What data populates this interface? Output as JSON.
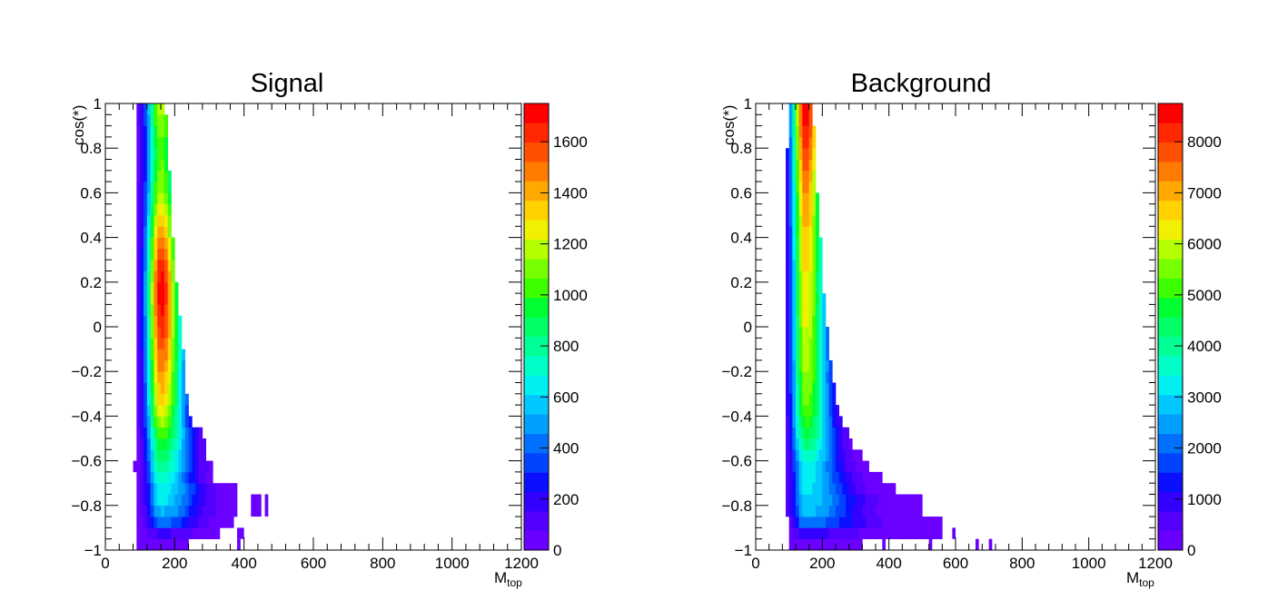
{
  "palette": [
    "#6a00ff",
    "#5400ff",
    "#3300ff",
    "#0a10ff",
    "#0044ff",
    "#0070ff",
    "#00a0ff",
    "#00c8ff",
    "#00f0f0",
    "#00ffc8",
    "#00ff96",
    "#00ff64",
    "#00ff32",
    "#3cff00",
    "#78ff00",
    "#b4ff00",
    "#f0f000",
    "#ffd200",
    "#ffa800",
    "#ff7c00",
    "#ff5000",
    "#ff2800",
    "#ff0000"
  ],
  "chart_data": [
    {
      "type": "heatmap",
      "title": "Signal",
      "xlabel_main": "M",
      "xlabel_sub": "top",
      "ylabel": "cos(*)",
      "xlim": [
        0,
        1200
      ],
      "ylim": [
        -1,
        1
      ],
      "x_ticks": [
        "0",
        "200",
        "400",
        "600",
        "800",
        "1000",
        "1200"
      ],
      "x_tick_values": [
        0,
        200,
        400,
        600,
        800,
        1000,
        1200
      ],
      "y_ticks": [
        "−1",
        "−0.8",
        "−0.6",
        "−0.4",
        "−0.2",
        "0",
        "0.2",
        "0.4",
        "0.6",
        "0.8",
        "1"
      ],
      "y_tick_values": [
        -1,
        -0.8,
        -0.6,
        -0.4,
        -0.2,
        0,
        0.2,
        0.4,
        0.6,
        0.8,
        1
      ],
      "z_max": 1750,
      "z_ticks": [
        "0",
        "200",
        "400",
        "600",
        "800",
        "1000",
        "1200",
        "1400",
        "1600"
      ],
      "z_tick_values": [
        0,
        200,
        400,
        600,
        800,
        1000,
        1200,
        1400,
        1600
      ],
      "bands": [
        {
          "y": [
            -1.0,
            -0.95
          ],
          "x_min": 90,
          "x_max": 240,
          "peak_x": 160,
          "peak": 40
        },
        {
          "y": [
            -0.95,
            -0.9
          ],
          "x_min": 90,
          "x_max": 330,
          "peak_x": 160,
          "peak": 170
        },
        {
          "y": [
            -0.9,
            -0.85
          ],
          "x_min": 90,
          "x_max": 370,
          "peak_x": 160,
          "peak": 420
        },
        {
          "y": [
            -0.85,
            -0.8
          ],
          "x_min": 90,
          "x_max": 380,
          "peak_x": 160,
          "peak": 540
        },
        {
          "y": [
            -0.8,
            -0.75
          ],
          "x_min": 90,
          "x_max": 380,
          "peak_x": 160,
          "peak": 620
        },
        {
          "y": [
            -0.75,
            -0.7
          ],
          "x_min": 90,
          "x_max": 380,
          "peak_x": 160,
          "peak": 660
        },
        {
          "y": [
            -0.7,
            -0.65
          ],
          "x_min": 90,
          "x_max": 310,
          "peak_x": 160,
          "peak": 720
        },
        {
          "y": [
            -0.65,
            -0.6
          ],
          "x_min": 80,
          "x_max": 310,
          "peak_x": 160,
          "peak": 800
        },
        {
          "y": [
            -0.6,
            -0.55
          ],
          "x_min": 90,
          "x_max": 290,
          "peak_x": 160,
          "peak": 880
        },
        {
          "y": [
            -0.55,
            -0.5
          ],
          "x_min": 90,
          "x_max": 290,
          "peak_x": 160,
          "peak": 960
        },
        {
          "y": [
            -0.5,
            -0.45
          ],
          "x_min": 90,
          "x_max": 280,
          "peak_x": 160,
          "peak": 1050
        },
        {
          "y": [
            -0.45,
            -0.4
          ],
          "x_min": 90,
          "x_max": 250,
          "peak_x": 160,
          "peak": 1150
        },
        {
          "y": [
            -0.4,
            -0.35
          ],
          "x_min": 90,
          "x_max": 240,
          "peak_x": 160,
          "peak": 1250
        },
        {
          "y": [
            -0.35,
            -0.3
          ],
          "x_min": 90,
          "x_max": 240,
          "peak_x": 160,
          "peak": 1330
        },
        {
          "y": [
            -0.3,
            -0.25
          ],
          "x_min": 90,
          "x_max": 230,
          "peak_x": 160,
          "peak": 1380
        },
        {
          "y": [
            -0.25,
            -0.2
          ],
          "x_min": 90,
          "x_max": 230,
          "peak_x": 160,
          "peak": 1420
        },
        {
          "y": [
            -0.2,
            -0.15
          ],
          "x_min": 90,
          "x_max": 230,
          "peak_x": 160,
          "peak": 1470
        },
        {
          "y": [
            -0.15,
            -0.1
          ],
          "x_min": 90,
          "x_max": 230,
          "peak_x": 160,
          "peak": 1530
        },
        {
          "y": [
            -0.1,
            -0.05
          ],
          "x_min": 90,
          "x_max": 220,
          "peak_x": 160,
          "peak": 1580
        },
        {
          "y": [
            -0.05,
            0.0
          ],
          "x_min": 90,
          "x_max": 220,
          "peak_x": 160,
          "peak": 1620
        },
        {
          "y": [
            0.0,
            0.05
          ],
          "x_min": 90,
          "x_max": 220,
          "peak_x": 160,
          "peak": 1660
        },
        {
          "y": [
            0.05,
            0.1
          ],
          "x_min": 90,
          "x_max": 210,
          "peak_x": 160,
          "peak": 1690
        },
        {
          "y": [
            0.1,
            0.15
          ],
          "x_min": 90,
          "x_max": 210,
          "peak_x": 160,
          "peak": 1720
        },
        {
          "y": [
            0.15,
            0.2
          ],
          "x_min": 90,
          "x_max": 210,
          "peak_x": 160,
          "peak": 1740
        },
        {
          "y": [
            0.2,
            0.25
          ],
          "x_min": 90,
          "x_max": 200,
          "peak_x": 160,
          "peak": 1700
        },
        {
          "y": [
            0.25,
            0.3
          ],
          "x_min": 90,
          "x_max": 200,
          "peak_x": 160,
          "peak": 1650
        },
        {
          "y": [
            0.3,
            0.35
          ],
          "x_min": 90,
          "x_max": 200,
          "peak_x": 160,
          "peak": 1580
        },
        {
          "y": [
            0.35,
            0.4
          ],
          "x_min": 90,
          "x_max": 200,
          "peak_x": 160,
          "peak": 1500
        },
        {
          "y": [
            0.4,
            0.45
          ],
          "x_min": 90,
          "x_max": 190,
          "peak_x": 160,
          "peak": 1420
        },
        {
          "y": [
            0.45,
            0.5
          ],
          "x_min": 90,
          "x_max": 190,
          "peak_x": 160,
          "peak": 1380
        },
        {
          "y": [
            0.5,
            0.55
          ],
          "x_min": 90,
          "x_max": 190,
          "peak_x": 160,
          "peak": 1300
        },
        {
          "y": [
            0.55,
            0.6
          ],
          "x_min": 90,
          "x_max": 190,
          "peak_x": 160,
          "peak": 1220
        },
        {
          "y": [
            0.6,
            0.65
          ],
          "x_min": 90,
          "x_max": 190,
          "peak_x": 160,
          "peak": 1150
        },
        {
          "y": [
            0.65,
            0.7
          ],
          "x_min": 90,
          "x_max": 190,
          "peak_x": 160,
          "peak": 1100
        },
        {
          "y": [
            0.7,
            0.75
          ],
          "x_min": 90,
          "x_max": 180,
          "peak_x": 160,
          "peak": 1080
        },
        {
          "y": [
            0.75,
            0.8
          ],
          "x_min": 90,
          "x_max": 180,
          "peak_x": 160,
          "peak": 1050
        },
        {
          "y": [
            0.8,
            0.85
          ],
          "x_min": 90,
          "x_max": 180,
          "peak_x": 160,
          "peak": 1060
        },
        {
          "y": [
            0.85,
            0.9
          ],
          "x_min": 90,
          "x_max": 180,
          "peak_x": 160,
          "peak": 1100
        },
        {
          "y": [
            0.9,
            0.95
          ],
          "x_min": 90,
          "x_max": 180,
          "peak_x": 160,
          "peak": 1150
        },
        {
          "y": [
            0.95,
            1.0
          ],
          "x_min": 90,
          "x_max": 170,
          "peak_x": 160,
          "peak": 1200
        }
      ],
      "extra_cells": [
        {
          "x": [
            420,
            450
          ],
          "y": [
            -0.85,
            -0.75
          ],
          "z": 20
        },
        {
          "x": [
            380,
            400
          ],
          "y": [
            -0.95,
            -0.9
          ],
          "z": 20
        },
        {
          "x": [
            380,
            390
          ],
          "y": [
            -1.0,
            -0.95
          ],
          "z": 20
        },
        {
          "x": [
            310,
            330
          ],
          "y": [
            -0.9,
            -0.85
          ],
          "z": 20
        },
        {
          "x": [
            460,
            470
          ],
          "y": [
            -0.85,
            -0.75
          ],
          "z": 20
        }
      ]
    },
    {
      "type": "heatmap",
      "title": "Background",
      "xlabel_main": "M",
      "xlabel_sub": "top",
      "ylabel": "cos(*)",
      "xlim": [
        0,
        1200
      ],
      "ylim": [
        -1,
        1
      ],
      "x_ticks": [
        "0",
        "200",
        "400",
        "600",
        "800",
        "1000",
        "1200"
      ],
      "x_tick_values": [
        0,
        200,
        400,
        600,
        800,
        1000,
        1200
      ],
      "y_ticks": [
        "−1",
        "−0.8",
        "−0.6",
        "−0.4",
        "−0.2",
        "0",
        "0.2",
        "0.4",
        "0.6",
        "0.8",
        "1"
      ],
      "y_tick_values": [
        -1,
        -0.8,
        -0.6,
        -0.4,
        -0.2,
        0,
        0.2,
        0.4,
        0.6,
        0.8,
        1
      ],
      "z_max": 8750,
      "z_ticks": [
        "0",
        "1000",
        "2000",
        "3000",
        "4000",
        "5000",
        "6000",
        "7000",
        "8000"
      ],
      "z_tick_values": [
        0,
        1000,
        2000,
        3000,
        4000,
        5000,
        6000,
        7000,
        8000
      ],
      "bands": [
        {
          "y": [
            -1.0,
            -0.95
          ],
          "x_min": 100,
          "x_max": 320,
          "peak_x": 150,
          "peak": 300
        },
        {
          "y": [
            -0.95,
            -0.9
          ],
          "x_min": 100,
          "x_max": 560,
          "peak_x": 150,
          "peak": 900
        },
        {
          "y": [
            -0.9,
            -0.85
          ],
          "x_min": 100,
          "x_max": 560,
          "peak_x": 150,
          "peak": 2200
        },
        {
          "y": [
            -0.85,
            -0.8
          ],
          "x_min": 90,
          "x_max": 500,
          "peak_x": 150,
          "peak": 2800
        },
        {
          "y": [
            -0.8,
            -0.75
          ],
          "x_min": 90,
          "x_max": 500,
          "peak_x": 150,
          "peak": 3000
        },
        {
          "y": [
            -0.75,
            -0.7
          ],
          "x_min": 90,
          "x_max": 420,
          "peak_x": 150,
          "peak": 3100
        },
        {
          "y": [
            -0.7,
            -0.65
          ],
          "x_min": 90,
          "x_max": 380,
          "peak_x": 150,
          "peak": 3200
        },
        {
          "y": [
            -0.65,
            -0.6
          ],
          "x_min": 90,
          "x_max": 340,
          "peak_x": 150,
          "peak": 3400
        },
        {
          "y": [
            -0.6,
            -0.55
          ],
          "x_min": 90,
          "x_max": 320,
          "peak_x": 150,
          "peak": 3800
        },
        {
          "y": [
            -0.55,
            -0.5
          ],
          "x_min": 90,
          "x_max": 290,
          "peak_x": 150,
          "peak": 4200
        },
        {
          "y": [
            -0.5,
            -0.45
          ],
          "x_min": 90,
          "x_max": 280,
          "peak_x": 150,
          "peak": 4600
        },
        {
          "y": [
            -0.45,
            -0.4
          ],
          "x_min": 90,
          "x_max": 260,
          "peak_x": 150,
          "peak": 5000
        },
        {
          "y": [
            -0.4,
            -0.35
          ],
          "x_min": 90,
          "x_max": 250,
          "peak_x": 150,
          "peak": 5300
        },
        {
          "y": [
            -0.35,
            -0.3
          ],
          "x_min": 90,
          "x_max": 240,
          "peak_x": 150,
          "peak": 5500
        },
        {
          "y": [
            -0.3,
            -0.25
          ],
          "x_min": 90,
          "x_max": 240,
          "peak_x": 150,
          "peak": 5600
        },
        {
          "y": [
            -0.25,
            -0.2
          ],
          "x_min": 90,
          "x_max": 230,
          "peak_x": 150,
          "peak": 5700
        },
        {
          "y": [
            -0.2,
            -0.15
          ],
          "x_min": 90,
          "x_max": 230,
          "peak_x": 150,
          "peak": 5800
        },
        {
          "y": [
            -0.15,
            -0.1
          ],
          "x_min": 90,
          "x_max": 220,
          "peak_x": 150,
          "peak": 5900
        },
        {
          "y": [
            -0.1,
            -0.05
          ],
          "x_min": 90,
          "x_max": 220,
          "peak_x": 150,
          "peak": 6000
        },
        {
          "y": [
            -0.05,
            0.0
          ],
          "x_min": 90,
          "x_max": 220,
          "peak_x": 150,
          "peak": 6100
        },
        {
          "y": [
            0.0,
            0.05
          ],
          "x_min": 90,
          "x_max": 210,
          "peak_x": 150,
          "peak": 6200
        },
        {
          "y": [
            0.05,
            0.1
          ],
          "x_min": 90,
          "x_max": 210,
          "peak_x": 150,
          "peak": 6300
        },
        {
          "y": [
            0.1,
            0.15
          ],
          "x_min": 90,
          "x_max": 210,
          "peak_x": 150,
          "peak": 6400
        },
        {
          "y": [
            0.15,
            0.2
          ],
          "x_min": 90,
          "x_max": 200,
          "peak_x": 150,
          "peak": 6500
        },
        {
          "y": [
            0.2,
            0.25
          ],
          "x_min": 90,
          "x_max": 200,
          "peak_x": 150,
          "peak": 6500
        },
        {
          "y": [
            0.25,
            0.3
          ],
          "x_min": 90,
          "x_max": 200,
          "peak_x": 150,
          "peak": 6600
        },
        {
          "y": [
            0.3,
            0.35
          ],
          "x_min": 90,
          "x_max": 200,
          "peak_x": 150,
          "peak": 6700
        },
        {
          "y": [
            0.35,
            0.4
          ],
          "x_min": 90,
          "x_max": 200,
          "peak_x": 150,
          "peak": 6800
        },
        {
          "y": [
            0.4,
            0.45
          ],
          "x_min": 90,
          "x_max": 190,
          "peak_x": 150,
          "peak": 6900
        },
        {
          "y": [
            0.45,
            0.5
          ],
          "x_min": 90,
          "x_max": 190,
          "peak_x": 150,
          "peak": 7000
        },
        {
          "y": [
            0.5,
            0.55
          ],
          "x_min": 90,
          "x_max": 190,
          "peak_x": 150,
          "peak": 7100
        },
        {
          "y": [
            0.55,
            0.6
          ],
          "x_min": 90,
          "x_max": 190,
          "peak_x": 150,
          "peak": 7200
        },
        {
          "y": [
            0.6,
            0.65
          ],
          "x_min": 90,
          "x_max": 180,
          "peak_x": 150,
          "peak": 7400
        },
        {
          "y": [
            0.65,
            0.7
          ],
          "x_min": 90,
          "x_max": 180,
          "peak_x": 150,
          "peak": 7600
        },
        {
          "y": [
            0.7,
            0.75
          ],
          "x_min": 90,
          "x_max": 180,
          "peak_x": 150,
          "peak": 7800
        },
        {
          "y": [
            0.75,
            0.8
          ],
          "x_min": 90,
          "x_max": 180,
          "peak_x": 150,
          "peak": 8000
        },
        {
          "y": [
            0.8,
            0.85
          ],
          "x_min": 100,
          "x_max": 180,
          "peak_x": 150,
          "peak": 8200
        },
        {
          "y": [
            0.85,
            0.9
          ],
          "x_min": 100,
          "x_max": 180,
          "peak_x": 150,
          "peak": 8400
        },
        {
          "y": [
            0.9,
            0.95
          ],
          "x_min": 100,
          "x_max": 170,
          "peak_x": 150,
          "peak": 8600
        },
        {
          "y": [
            0.95,
            1.0
          ],
          "x_min": 100,
          "x_max": 170,
          "peak_x": 150,
          "peak": 8700
        }
      ],
      "extra_cells": [
        {
          "x": [
            590,
            600
          ],
          "y": [
            -0.95,
            -0.9
          ],
          "z": 150
        },
        {
          "x": [
            660,
            670
          ],
          "y": [
            -1.0,
            -0.95
          ],
          "z": 150
        },
        {
          "x": [
            520,
            530
          ],
          "y": [
            -1.0,
            -0.95
          ],
          "z": 150
        },
        {
          "x": [
            380,
            390
          ],
          "y": [
            -1.0,
            -0.95
          ],
          "z": 150
        },
        {
          "x": [
            700,
            710
          ],
          "y": [
            -1.0,
            -0.95
          ],
          "z": 150
        }
      ]
    }
  ]
}
